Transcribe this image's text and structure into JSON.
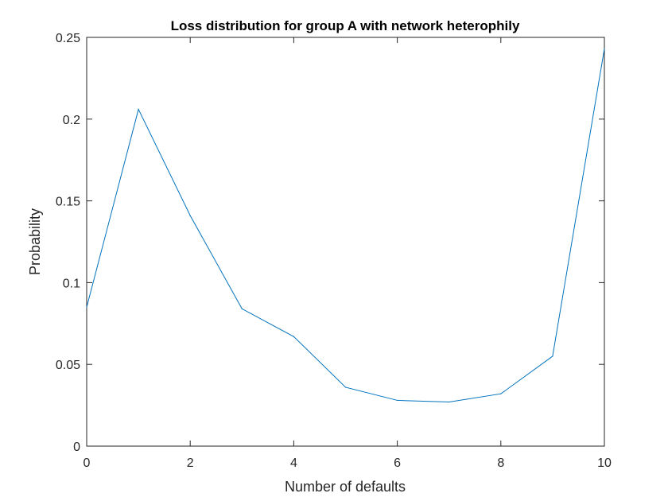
{
  "chart_data": {
    "type": "line",
    "title": "Loss distribution for group A with network heterophily",
    "xlabel": "Number of defaults",
    "ylabel": "Probability",
    "xlim": [
      0,
      10
    ],
    "ylim": [
      0,
      0.25
    ],
    "xticks": [
      0,
      2,
      4,
      6,
      8,
      10
    ],
    "xtick_labels": [
      "0",
      "2",
      "4",
      "6",
      "8",
      "10"
    ],
    "yticks": [
      0,
      0.05,
      0.1,
      0.15,
      0.2,
      0.25
    ],
    "ytick_labels": [
      "0",
      "0.05",
      "0.1",
      "0.15",
      "0.2",
      "0.25"
    ],
    "grid": false,
    "legend": "none",
    "series": [
      {
        "color": "#0072BD",
        "x": [
          0,
          1,
          2,
          3,
          4,
          5,
          6,
          7,
          8,
          9,
          10
        ],
        "y": [
          0.085,
          0.206,
          0.141,
          0.084,
          0.067,
          0.036,
          0.028,
          0.027,
          0.032,
          0.055,
          0.243
        ]
      }
    ]
  }
}
